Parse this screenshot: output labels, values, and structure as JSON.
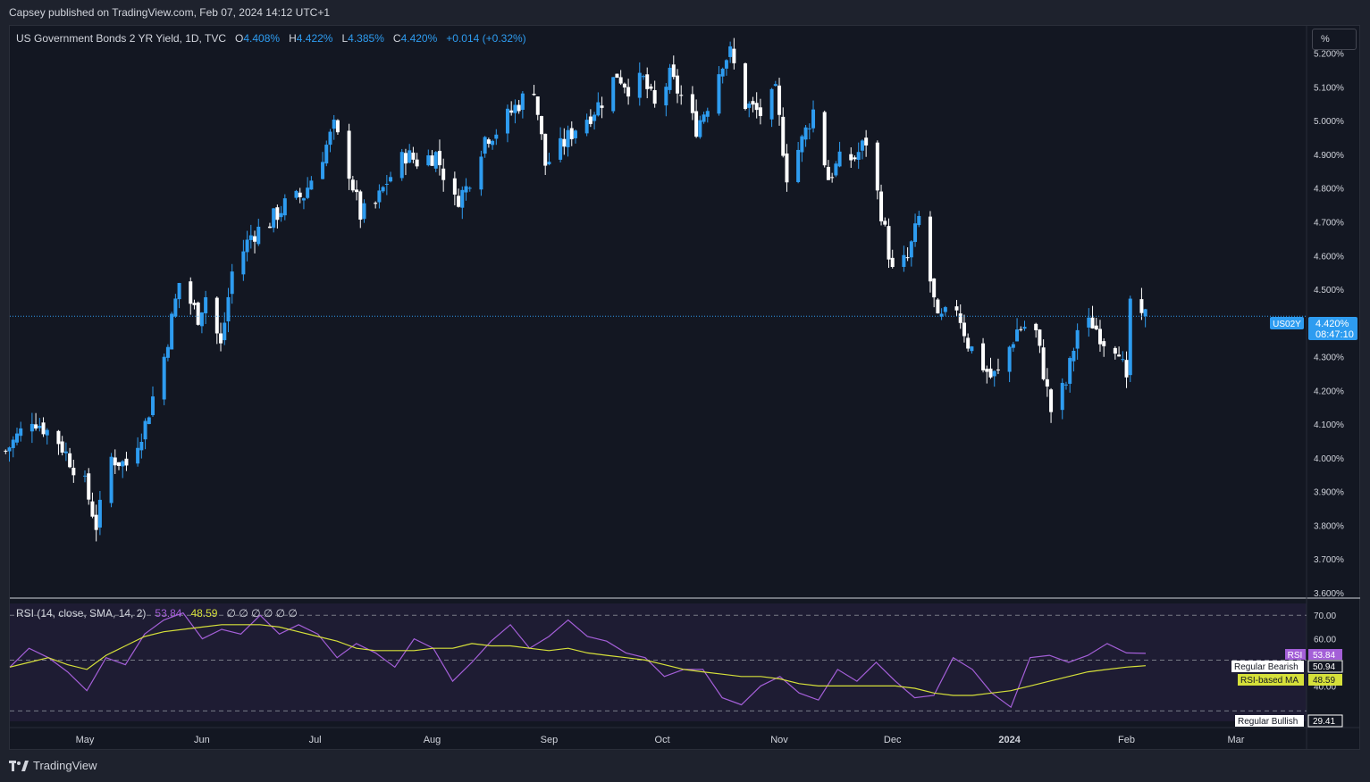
{
  "header": {
    "published": "Capsey published on TradingView.com, Feb 07, 2024 14:12 UTC+1"
  },
  "legend": {
    "title": "US Government Bonds 2 YR Yield, 1D, TVC",
    "o_label": "O",
    "o_value": "4.408%",
    "h_label": "H",
    "h_value": "4.422%",
    "l_label": "L",
    "l_value": "4.385%",
    "c_label": "C",
    "c_value": "4.420%",
    "change": "+0.014 (+0.32%)"
  },
  "scale_button": "%",
  "price_tag": {
    "symbol": "US02Y",
    "price": "4.420%",
    "countdown": "08:47:10"
  },
  "rsi_legend": {
    "title": "RSI (14, close, SMA, 14, 2)",
    "rsi_value": "53.84",
    "ma_value": "48.59",
    "placeholders": "∅ ∅ ∅ ∅ ∅ ∅"
  },
  "rsi_tags": {
    "rsi_label": "RSI",
    "rsi_value": "53.84",
    "bearish_label": "Regular Bearish",
    "bearish_value": "50.94",
    "ma_label": "RSI-based MA",
    "ma_value": "48.59",
    "bullish_label": "Regular Bullish",
    "bullish_value": "29.41"
  },
  "footer": {
    "brand": "TradingView"
  },
  "colors": {
    "up": "#2e9cf0",
    "down": "#ffffff",
    "rsi": "#a45fd8",
    "rsi_ma": "#d6e03a",
    "background": "#131722",
    "rsi_band": "#1e1c33"
  },
  "chart_data": [
    {
      "type": "candlestick",
      "ylim": [
        3.6,
        5.26
      ],
      "y_ticks": [
        "5.200%",
        "5.100%",
        "5.000%",
        "4.900%",
        "4.800%",
        "4.700%",
        "4.600%",
        "4.500%",
        "4.300%",
        "4.200%",
        "4.100%",
        "4.000%",
        "3.900%",
        "3.800%",
        "3.700%",
        "3.600%"
      ],
      "y_tick_values": [
        5.2,
        5.1,
        5.0,
        4.9,
        4.8,
        4.7,
        4.6,
        4.5,
        4.3,
        4.2,
        4.1,
        4.0,
        3.9,
        3.8,
        3.7,
        3.6
      ],
      "x_ticks": [
        "May",
        "Jun",
        "Jul",
        "Aug",
        "Sep",
        "Oct",
        "Nov",
        "Dec",
        "2024",
        "Feb",
        "Mar"
      ],
      "x_tick_dates": [
        "2023-05-01",
        "2023-06-01",
        "2023-07-01",
        "2023-08-01",
        "2023-09-01",
        "2023-10-01",
        "2023-11-01",
        "2023-12-01",
        "2024-01-01",
        "2024-02-01",
        "2024-03-01"
      ],
      "last_price": 4.42,
      "closes": [
        [
          "2023-04-10",
          4.02
        ],
        [
          "2023-04-17",
          4.12
        ],
        [
          "2023-04-24",
          4.05
        ],
        [
          "2023-05-01",
          3.92
        ],
        [
          "2023-05-04",
          3.8
        ],
        [
          "2023-05-08",
          4.0
        ],
        [
          "2023-05-12",
          3.98
        ],
        [
          "2023-05-17",
          4.1
        ],
        [
          "2023-05-22",
          4.3
        ],
        [
          "2023-05-26",
          4.52
        ],
        [
          "2023-05-31",
          4.42
        ],
        [
          "2023-06-02",
          4.48
        ],
        [
          "2023-06-06",
          4.33
        ],
        [
          "2023-06-09",
          4.55
        ],
        [
          "2023-06-14",
          4.66
        ],
        [
          "2023-06-19",
          4.7
        ],
        [
          "2023-06-23",
          4.75
        ],
        [
          "2023-06-28",
          4.78
        ],
        [
          "2023-07-03",
          4.9
        ],
        [
          "2023-07-06",
          4.98
        ],
        [
          "2023-07-10",
          4.85
        ],
        [
          "2023-07-13",
          4.72
        ],
        [
          "2023-07-17",
          4.75
        ],
        [
          "2023-07-20",
          4.82
        ],
        [
          "2023-07-25",
          4.9
        ],
        [
          "2023-07-28",
          4.88
        ],
        [
          "2023-08-02",
          4.9
        ],
        [
          "2023-08-07",
          4.76
        ],
        [
          "2023-08-10",
          4.8
        ],
        [
          "2023-08-15",
          4.95
        ],
        [
          "2023-08-18",
          4.97
        ],
        [
          "2023-08-23",
          5.04
        ],
        [
          "2023-08-28",
          5.1
        ],
        [
          "2023-08-31",
          4.87
        ],
        [
          "2023-09-04",
          4.92
        ],
        [
          "2023-09-08",
          4.98
        ],
        [
          "2023-09-12",
          5.02
        ],
        [
          "2023-09-15",
          5.06
        ],
        [
          "2023-09-19",
          5.14
        ],
        [
          "2023-09-22",
          5.1
        ],
        [
          "2023-09-26",
          5.12
        ],
        [
          "2023-09-29",
          5.04
        ],
        [
          "2023-10-03",
          5.13
        ],
        [
          "2023-10-06",
          5.07
        ],
        [
          "2023-10-10",
          4.98
        ],
        [
          "2023-10-13",
          5.05
        ],
        [
          "2023-10-17",
          5.18
        ],
        [
          "2023-10-19",
          5.2
        ],
        [
          "2023-10-23",
          5.05
        ],
        [
          "2023-10-27",
          5.02
        ],
        [
          "2023-10-31",
          5.08
        ],
        [
          "2023-11-03",
          4.84
        ],
        [
          "2023-11-07",
          4.94
        ],
        [
          "2023-11-10",
          5.03
        ],
        [
          "2023-11-14",
          4.83
        ],
        [
          "2023-11-17",
          4.88
        ],
        [
          "2023-11-21",
          4.89
        ],
        [
          "2023-11-24",
          4.94
        ],
        [
          "2023-11-28",
          4.73
        ],
        [
          "2023-12-01",
          4.55
        ],
        [
          "2023-12-05",
          4.59
        ],
        [
          "2023-12-08",
          4.71
        ],
        [
          "2023-12-13",
          4.4
        ],
        [
          "2023-12-18",
          4.45
        ],
        [
          "2023-12-21",
          4.34
        ],
        [
          "2023-12-27",
          4.24
        ],
        [
          "2023-12-29",
          4.25
        ],
        [
          "2024-01-03",
          4.38
        ],
        [
          "2024-01-05",
          4.39
        ],
        [
          "2024-01-08",
          4.37
        ],
        [
          "2024-01-12",
          4.14
        ],
        [
          "2024-01-16",
          4.22
        ],
        [
          "2024-01-19",
          4.38
        ],
        [
          "2024-01-23",
          4.4
        ],
        [
          "2024-01-26",
          4.35
        ],
        [
          "2024-01-30",
          4.33
        ],
        [
          "2024-02-01",
          4.21
        ],
        [
          "2024-02-02",
          4.47
        ],
        [
          "2024-02-05",
          4.4
        ],
        [
          "2024-02-06",
          4.42
        ]
      ]
    },
    {
      "type": "line",
      "title": "RSI (14, close, SMA, 14, 2)",
      "ylim": [
        25,
        75
      ],
      "y_ticks": [
        "70.00",
        "60.00",
        "40.00"
      ],
      "y_tick_values": [
        70,
        60,
        40
      ],
      "levels": [
        70,
        50.94,
        29.41
      ],
      "series": [
        {
          "name": "RSI",
          "values": [
            48,
            56,
            52,
            46,
            38,
            52,
            49,
            62,
            68,
            71,
            60,
            64,
            62,
            70,
            62,
            66,
            62,
            52,
            58,
            54,
            48,
            60,
            56,
            42,
            50,
            59,
            66,
            56,
            61,
            68,
            61,
            59,
            54,
            52,
            44,
            47,
            47,
            35,
            32,
            40,
            44,
            37,
            34,
            47,
            42,
            50,
            42,
            35,
            36,
            52,
            47,
            37,
            31,
            52,
            53,
            50,
            53,
            58,
            54,
            53.84
          ]
        },
        {
          "name": "RSI-based MA",
          "values": [
            48,
            50,
            52,
            49,
            47,
            53,
            57,
            61,
            63,
            64,
            65,
            66,
            66,
            66,
            65,
            63,
            61,
            59,
            56,
            55,
            55,
            55,
            56,
            56,
            58,
            57,
            57,
            56,
            55,
            56,
            54,
            53,
            52,
            51,
            49,
            47,
            46,
            45,
            44,
            44,
            43,
            41,
            40,
            40,
            40,
            40,
            40,
            39,
            37,
            36,
            36,
            37,
            38,
            40,
            42,
            44,
            46,
            47,
            48,
            48.59
          ]
        }
      ]
    }
  ]
}
